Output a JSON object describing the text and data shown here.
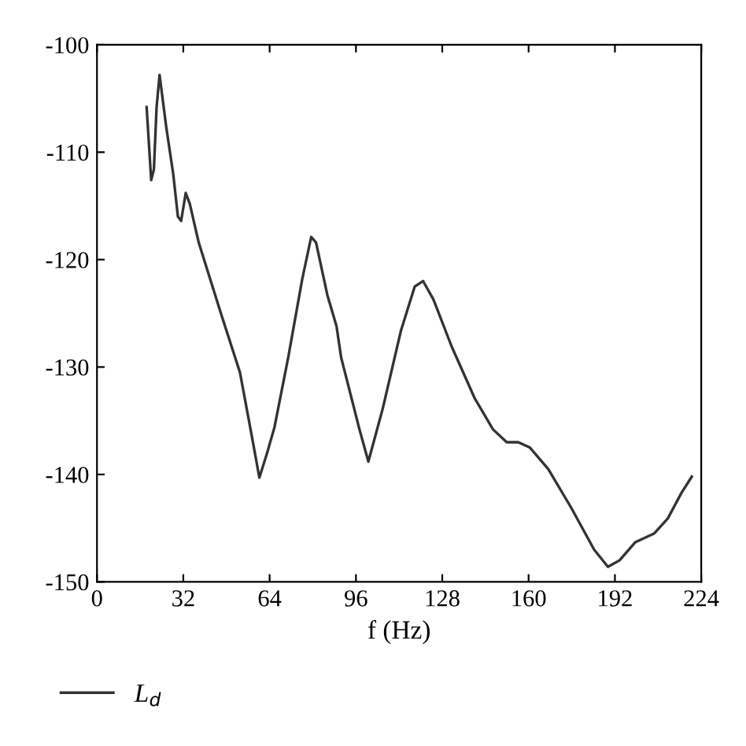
{
  "chart_data": {
    "type": "line",
    "xlabel": "f (Hz)",
    "xlim": [
      0,
      224
    ],
    "xticks": [
      0,
      32,
      64,
      96,
      128,
      160,
      192,
      224
    ],
    "ylim": [
      -150,
      -100
    ],
    "yticks": [
      -150,
      -140,
      -130,
      -120,
      -110,
      -100
    ],
    "grid": false,
    "legend": "bottom",
    "marker": "none",
    "line_style": "solid",
    "series": [
      {
        "name": "L$_{d}$",
        "color": "#333333",
        "x": [
          18.4,
          20.1,
          21.1,
          22.1,
          23.2,
          25.7,
          28.3,
          30,
          31.2,
          32.9,
          34.4,
          37.7,
          46.2,
          53,
          57.3,
          60.2,
          63.3,
          65.8,
          70.9,
          76.1,
          79.4,
          81.2,
          85.4,
          88.8,
          90.5,
          97.3,
          100.6,
          105.9,
          112.7,
          117.8,
          120.9,
          124.7,
          131.5,
          140,
          146.8,
          151.9,
          156.2,
          160.5,
          167.3,
          175.8,
          184.3,
          189.4,
          193.7,
          199.6,
          206.5,
          211.6,
          216.7,
          220.5
        ],
        "values": [
          -105.8,
          -112.6,
          -111.6,
          -105.8,
          -102.8,
          -107.7,
          -112.1,
          -116,
          -116.4,
          -113.8,
          -114.8,
          -118.4,
          -125.2,
          -130.5,
          -136.3,
          -140.3,
          -137.8,
          -135.6,
          -129.1,
          -121.8,
          -117.9,
          -118.4,
          -123.3,
          -126.2,
          -129.1,
          -135.8,
          -138.8,
          -133.9,
          -126.6,
          -122.5,
          -122,
          -123.7,
          -128.1,
          -132.9,
          -135.8,
          -137,
          -137,
          -137.5,
          -139.5,
          -143.1,
          -147,
          -148.6,
          -148,
          -146.3,
          -145.5,
          -144.1,
          -141.7,
          -140.2
        ]
      }
    ]
  }
}
